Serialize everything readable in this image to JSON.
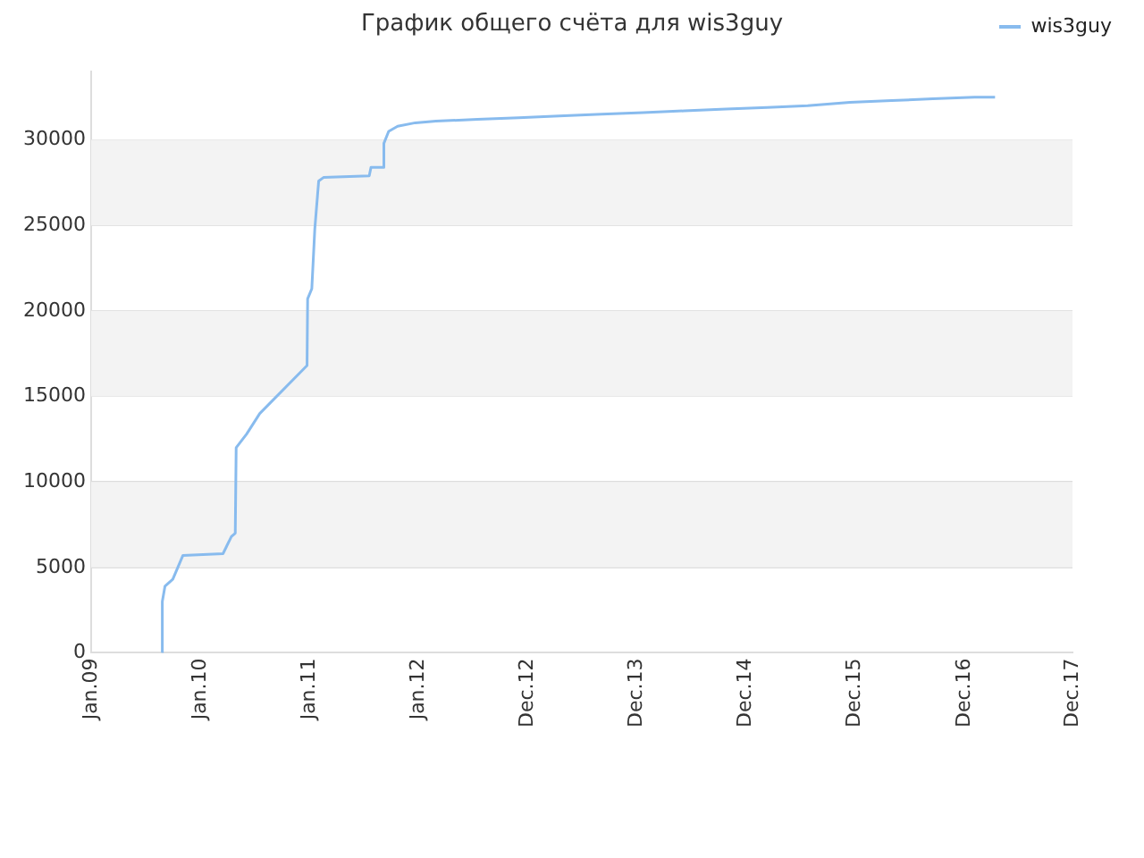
{
  "chart_data": {
    "type": "line",
    "title": "График общего счёта для wis3guy",
    "x": [
      "2009-08-26",
      "2009-08-27",
      "2009-09-05",
      "2009-10-01",
      "2009-11-04",
      "2010-03-18",
      "2010-04-15",
      "2010-04-28",
      "2010-05-01",
      "2010-06-05",
      "2010-07-19",
      "2010-12-24",
      "2010-12-26",
      "2011-01-09",
      "2011-01-19",
      "2011-02-01",
      "2011-02-17",
      "2011-07-20",
      "2011-07-26",
      "2011-09-03",
      "2011-09-07",
      "2011-09-23",
      "2011-10-23",
      "2011-12-21",
      "2012-02-28",
      "2012-07-16",
      "2012-12-01",
      "2013-04-15",
      "2013-09-04",
      "2014-01-21",
      "2014-06-08",
      "2014-10-25",
      "2015-03-12",
      "2015-07-25",
      "2015-12-14",
      "2016-05-01",
      "2016-09-16",
      "2017-02-02",
      "2017-04-12"
    ],
    "series": [
      {
        "name": "wis3guy",
        "color": "#88bbee",
        "values": [
          0,
          3000,
          3900,
          4300,
          5700,
          5800,
          6800,
          7000,
          12000,
          12800,
          14000,
          16800,
          20700,
          21300,
          24800,
          27600,
          27800,
          27900,
          28400,
          28400,
          29800,
          30500,
          30800,
          31000,
          31100,
          31200,
          31300,
          31400,
          31500,
          31600,
          31700,
          31800,
          31900,
          32000,
          32200,
          32300,
          32400,
          32500,
          32500
        ]
      }
    ],
    "xlim": [
      "2009-01-01",
      "2017-12-27"
    ],
    "xticks": [
      {
        "value": "2009-01-01",
        "label": "Jan.09"
      },
      {
        "value": "2010-01-01",
        "label": "Jan.10"
      },
      {
        "value": "2011-01-01",
        "label": "Jan.11"
      },
      {
        "value": "2012-01-01",
        "label": "Jan.12"
      },
      {
        "value": "2012-12-31",
        "label": "Dec.12"
      },
      {
        "value": "2013-12-31",
        "label": "Dec.13"
      },
      {
        "value": "2014-12-31",
        "label": "Dec.14"
      },
      {
        "value": "2015-12-31",
        "label": "Dec.15"
      },
      {
        "value": "2016-12-30",
        "label": "Dec.16"
      },
      {
        "value": "2017-12-27",
        "label": "Dec.17"
      }
    ],
    "ylim": [
      0,
      34000
    ],
    "yticks": [
      0,
      5000,
      10000,
      15000,
      20000,
      25000,
      30000
    ],
    "grid": "y",
    "legend": "top right",
    "marker": "none",
    "line_style": "solid"
  }
}
